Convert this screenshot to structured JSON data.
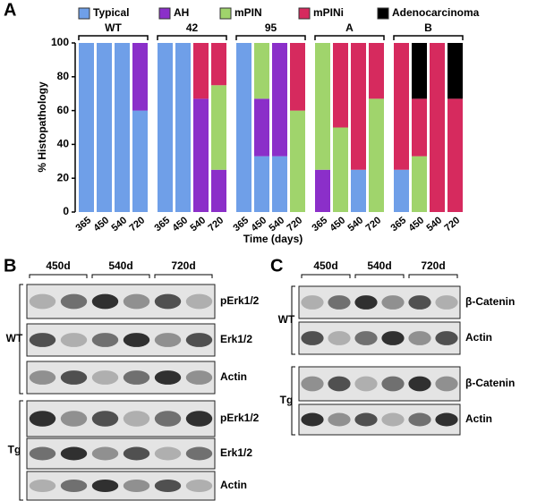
{
  "panel_labels": [
    "A",
    "B",
    "C"
  ],
  "chart_data": {
    "type": "bar",
    "stacked": true,
    "y_label": "% Histopathology",
    "x_label": "Time (days)",
    "groups": [
      "WT",
      "42",
      "95",
      "A",
      "B"
    ],
    "categories": [
      "365",
      "450",
      "540",
      "720",
      "365",
      "450",
      "540",
      "720",
      "365",
      "450",
      "540",
      "720",
      "365",
      "450",
      "540",
      "720",
      "365",
      "450",
      "540",
      "720"
    ],
    "series": [
      {
        "name": "Typical",
        "color": "#6f9fe8",
        "values": [
          100,
          100,
          100,
          60,
          100,
          100,
          0,
          0,
          100,
          33,
          33,
          0,
          0,
          0,
          25,
          0,
          25,
          0,
          0,
          0
        ]
      },
      {
        "name": "AH",
        "color": "#8b2fc9",
        "values": [
          0,
          0,
          0,
          40,
          0,
          0,
          67,
          25,
          0,
          34,
          67,
          0,
          25,
          0,
          0,
          0,
          0,
          0,
          0,
          0
        ]
      },
      {
        "name": "mPIN",
        "color": "#a0d46c",
        "values": [
          0,
          0,
          0,
          0,
          0,
          0,
          0,
          50,
          0,
          33,
          0,
          60,
          75,
          50,
          0,
          67,
          0,
          33,
          0,
          0
        ]
      },
      {
        "name": "mPINi",
        "color": "#d62a5e",
        "values": [
          0,
          0,
          0,
          0,
          0,
          0,
          33,
          25,
          0,
          0,
          0,
          40,
          0,
          50,
          75,
          33,
          75,
          34,
          100,
          67
        ]
      },
      {
        "name": "Adenocarcinoma",
        "color": "#000000",
        "values": [
          0,
          0,
          0,
          0,
          0,
          0,
          0,
          0,
          0,
          0,
          0,
          0,
          0,
          0,
          0,
          0,
          0,
          33,
          0,
          33
        ]
      }
    ],
    "ylim": [
      0,
      100
    ],
    "yticks": [
      0,
      20,
      40,
      60,
      80,
      100
    ]
  },
  "blot_b": {
    "lanes": [
      "450d",
      "540d",
      "720d"
    ],
    "groups": [
      {
        "label": "WT",
        "rows": [
          "pErk1/2",
          "Erk1/2",
          "Actin"
        ]
      },
      {
        "label": "Tg",
        "rows": [
          "pErk1/2",
          "Erk1/2",
          "Actin"
        ]
      }
    ]
  },
  "blot_c": {
    "lanes": [
      "450d",
      "540d",
      "720d"
    ],
    "groups": [
      {
        "label": "WT",
        "rows": [
          "β-Catenin",
          "Actin"
        ]
      },
      {
        "label": "Tg",
        "rows": [
          "β-Catenin",
          "Actin"
        ]
      }
    ]
  }
}
